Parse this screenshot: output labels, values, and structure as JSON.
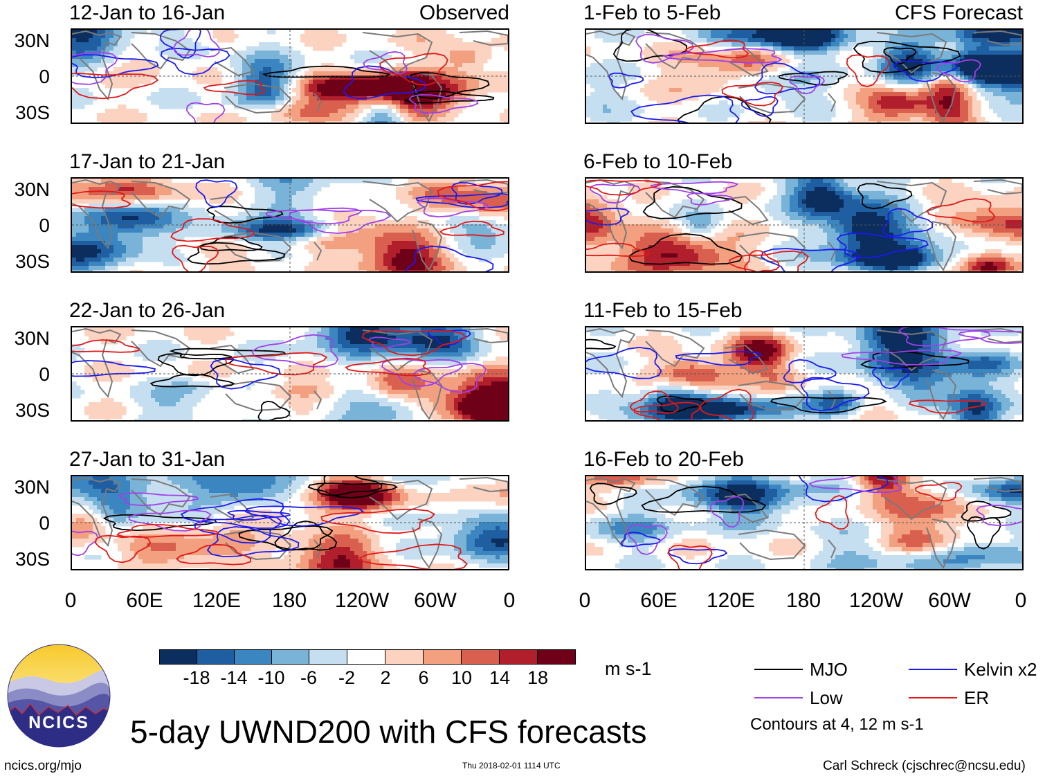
{
  "figure": {
    "title": "5-day UWND200 with CFS forecasts",
    "observed_tag": "Observed",
    "forecast_tag": "CFS Forecast",
    "lat_labels": [
      "30N",
      "0",
      "30S"
    ],
    "lon_labels": [
      "0",
      "60E",
      "120E",
      "180",
      "120W",
      "60W",
      "0"
    ],
    "units": "m s-1",
    "contour_note": "Contours at 4, 12 m s-1",
    "website": "ncics.org/mjo",
    "timestamp": "Thu 2018-02-01 1114 UTC",
    "author": "Carl Schreck (cjschrec@ncsu.edu)",
    "logo_text": "NCICS",
    "colors": {
      "mjo": "#000000",
      "kelvin": "#1a1aee",
      "low": "#a040e8",
      "er": "#e01818",
      "land": "#7a7a7a"
    }
  },
  "chart_data": {
    "type": "heatmap",
    "variable": "200-hPa zonal wind anomaly (UWND200)",
    "units": "m s-1",
    "colorbar": {
      "ticks": [
        -18,
        -14,
        -10,
        -6,
        -2,
        2,
        6,
        10,
        14,
        18
      ],
      "tick_labels": [
        "-18",
        "-14",
        "-10",
        "-6",
        "-2",
        "2",
        "6",
        "10",
        "14",
        "18"
      ],
      "colors": [
        "#0b2e5e",
        "#1f5ea0",
        "#3b86c0",
        "#7ab3d8",
        "#c5dff0",
        "#ffffff",
        "#fbd3c0",
        "#f2a07f",
        "#d9604f",
        "#b21f2c",
        "#6e0018"
      ]
    },
    "contour_levels": [
      4,
      12
    ],
    "legend": [
      {
        "name": "MJO",
        "color": "#000000"
      },
      {
        "name": "Kelvin x2",
        "color": "#1a1aee"
      },
      {
        "name": "Low",
        "color": "#a040e8"
      },
      {
        "name": "ER",
        "color": "#e01818"
      }
    ],
    "xlim": [
      0,
      360
    ],
    "ylim": [
      -40,
      40
    ],
    "panels": [
      {
        "label": "12-Jan to 16-Jan",
        "source": "Observed",
        "seed": 11
      },
      {
        "label": "17-Jan to 21-Jan",
        "source": "Observed",
        "seed": 23
      },
      {
        "label": "22-Jan to 26-Jan",
        "source": "Observed",
        "seed": 37
      },
      {
        "label": "27-Jan to 31-Jan",
        "source": "Observed",
        "seed": 41
      },
      {
        "label": "1-Feb to 5-Feb",
        "source": "CFS Forecast",
        "seed": 53
      },
      {
        "label": "6-Feb to 10-Feb",
        "source": "CFS Forecast",
        "seed": 67
      },
      {
        "label": "11-Feb to 15-Feb",
        "source": "CFS Forecast",
        "seed": 79
      },
      {
        "label": "16-Feb to 20-Feb",
        "source": "CFS Forecast",
        "seed": 83
      }
    ]
  }
}
